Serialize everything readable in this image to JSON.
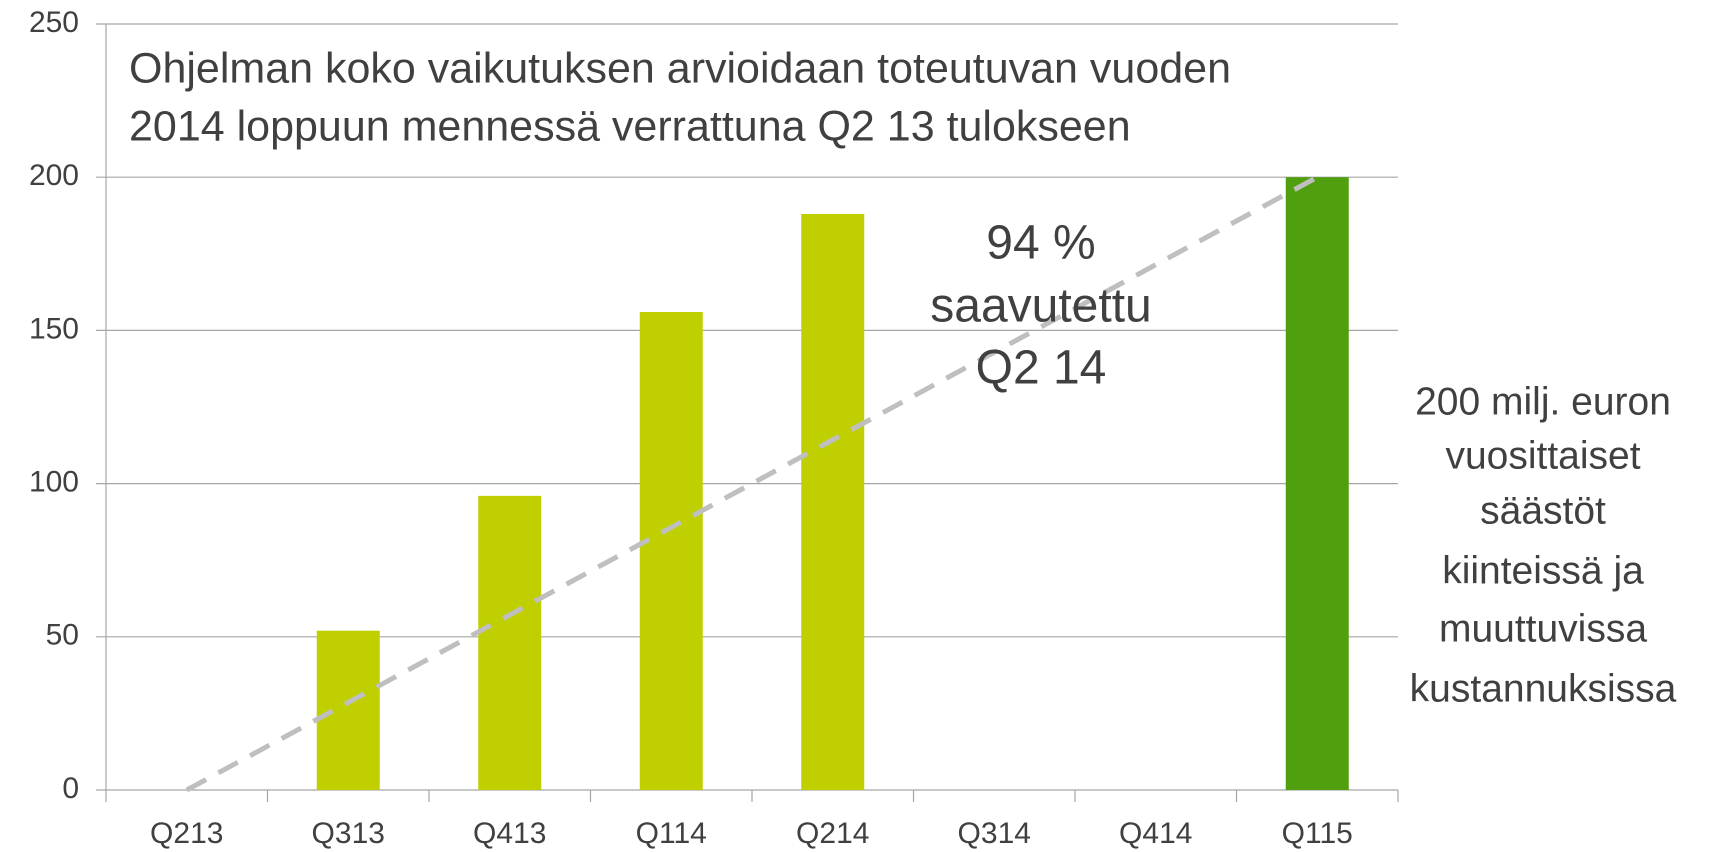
{
  "chart_data": {
    "type": "bar",
    "title": [
      "Ohjelman koko vaikutuksen arvioidaan toteutuvan vuoden",
      "2014 loppuun mennessä verrattuna Q2 13 tulokseen"
    ],
    "categories": [
      "Q213",
      "Q313",
      "Q413",
      "Q114",
      "Q214",
      "Q314",
      "Q414",
      "Q115"
    ],
    "values": [
      null,
      52,
      96,
      156,
      188,
      null,
      null,
      200
    ],
    "colors": [
      "#bfcf00",
      "#bfcf00",
      "#bfcf00",
      "#bfcf00",
      "#bfcf00",
      "#bfcf00",
      "#bfcf00",
      "#4f9f0f"
    ],
    "trend": {
      "values": [
        0,
        200
      ],
      "color": "#bfbfbf"
    },
    "annotations": [
      [
        "94 %",
        "saavutettu",
        "Q2 14"
      ],
      [
        "200 milj. euron",
        "vuosittaiset",
        "säästöt",
        "kiinteissä ja",
        "muuttuvissa",
        "kustannuksissa"
      ]
    ],
    "ylim": [
      0,
      250
    ],
    "yticks": [
      0,
      50,
      100,
      150,
      200,
      250
    ],
    "grid": true
  }
}
